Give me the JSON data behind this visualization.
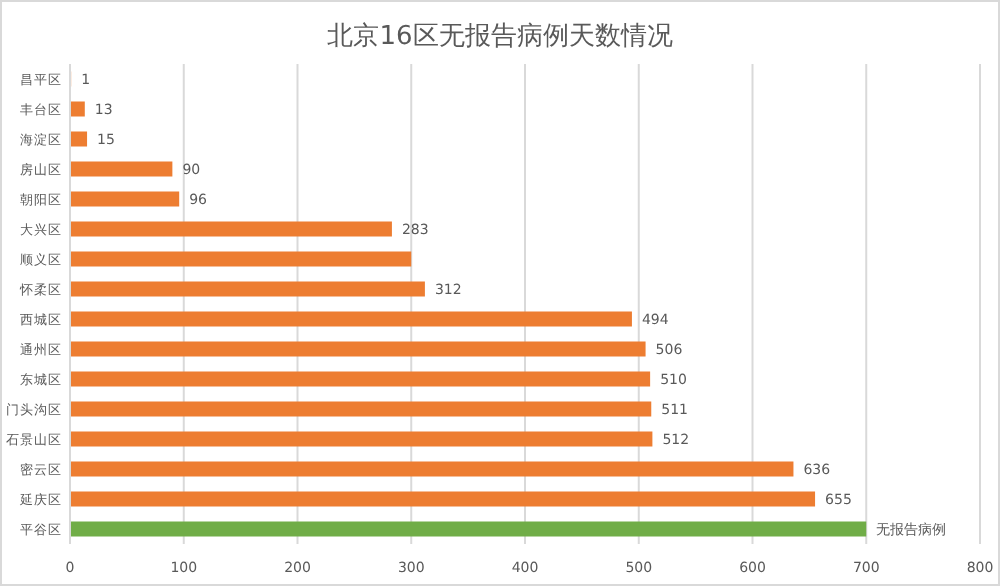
{
  "chart_data": {
    "type": "bar",
    "orientation": "horizontal",
    "title": "北京16区无报告病例天数情况",
    "categories": [
      "昌平区",
      "丰台区",
      "海淀区",
      "房山区",
      "朝阳区",
      "大兴区",
      "顺义区",
      "怀柔区",
      "西城区",
      "通州区",
      "东城区",
      "门头沟区",
      "石景山区",
      "密云区",
      "延庆区",
      "平谷区"
    ],
    "values": [
      1,
      13,
      15,
      90,
      96,
      283,
      300,
      312,
      494,
      506,
      510,
      511,
      512,
      636,
      655,
      700
    ],
    "value_labels": [
      "1",
      "13",
      "15",
      "90",
      "96",
      "283",
      null,
      "312",
      "494",
      "506",
      "510",
      "511",
      "512",
      "636",
      "655",
      "无报告病例"
    ],
    "colors": [
      "#ed7d31",
      "#ed7d31",
      "#ed7d31",
      "#ed7d31",
      "#ed7d31",
      "#ed7d31",
      "#ed7d31",
      "#ed7d31",
      "#ed7d31",
      "#ed7d31",
      "#ed7d31",
      "#ed7d31",
      "#ed7d31",
      "#ed7d31",
      "#ed7d31",
      "#70ad47"
    ],
    "xlim": [
      0,
      800
    ],
    "xticks": [
      0,
      100,
      200,
      300,
      400,
      500,
      600,
      700,
      800
    ],
    "grid": "x"
  }
}
